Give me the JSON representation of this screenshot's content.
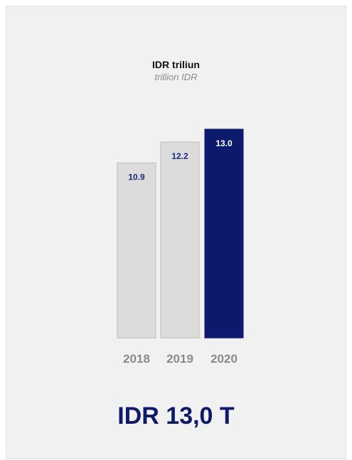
{
  "chart_data": {
    "type": "bar",
    "title": "IDR triliun",
    "subtitle": "trillion IDR",
    "categories": [
      "2018",
      "2019",
      "2020"
    ],
    "values": [
      10.9,
      12.2,
      13.0
    ],
    "value_labels": [
      "10.9",
      "12.2",
      "13.0"
    ],
    "highlight_index": 2,
    "ylim": [
      0,
      13.0
    ],
    "grid": false,
    "legend": "none"
  },
  "headline": "IDR 13,0 T",
  "colors": {
    "bar_default": "#dcdcdc",
    "bar_default_border": "#bdbdbd",
    "bar_highlight": "#0d1a6b",
    "label_default": "#1d2b7a",
    "label_highlight": "#ffffff",
    "tick_label": "#8a8a8a",
    "headline": "#0d1a6b"
  }
}
